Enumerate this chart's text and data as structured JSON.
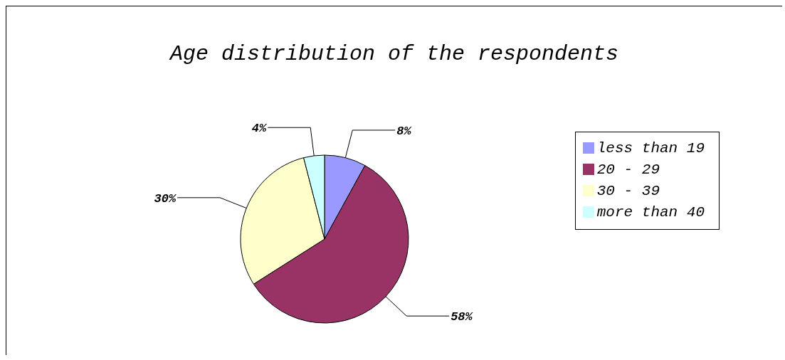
{
  "chart_data": {
    "type": "pie",
    "title": "Age distribution of the respondents",
    "categories": [
      "less than 19",
      "20 - 29",
      "30 - 39",
      "more than 40"
    ],
    "values": [
      8,
      58,
      30,
      4
    ],
    "value_labels": [
      "8%",
      "58%",
      "30%",
      "4%"
    ],
    "colors": [
      "#9999ff",
      "#993366",
      "#ffffcc",
      "#ccffff"
    ],
    "legend": "right"
  }
}
